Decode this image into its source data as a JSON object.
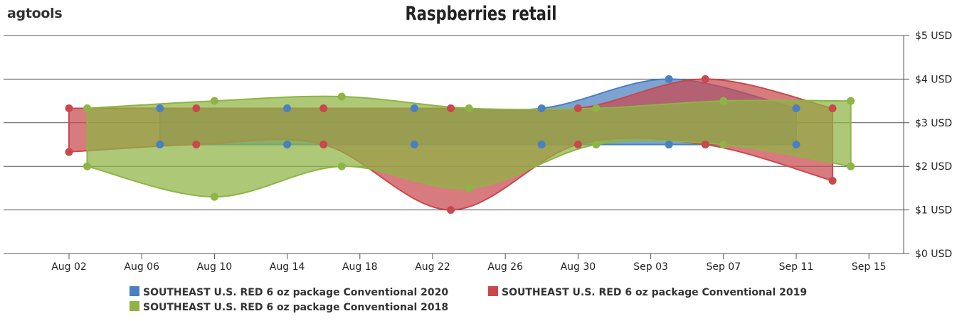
{
  "brand": {
    "logo_text": "agtools"
  },
  "chart_data": {
    "type": "area",
    "title": "Raspberries retail",
    "xlabel": "",
    "ylabel": "",
    "y_axis_position": "right",
    "ylim": [
      0,
      5
    ],
    "yticks": [
      "$0 USD",
      "$1 USD",
      "$2 USD",
      "$3 USD",
      "$4 USD",
      "$5 USD"
    ],
    "xticks": [
      "Aug 02",
      "Aug 06",
      "Aug 10",
      "Aug 14",
      "Aug 18",
      "Aug 22",
      "Aug 26",
      "Aug 30",
      "Sep 03",
      "Sep 07",
      "Sep 11",
      "Sep 15"
    ],
    "grid": "horizontal",
    "legend_position": "bottom-center",
    "series": [
      {
        "name": "SOUTHEAST U.S.  RED 6 oz package  Conventional 2020",
        "color": "#4a7fc1",
        "x": [
          "Aug 07",
          "Aug 14",
          "Aug 21",
          "Aug 28",
          "Sep 04",
          "Sep 11"
        ],
        "high": [
          3.33,
          3.33,
          3.33,
          3.33,
          4.0,
          3.33
        ],
        "low": [
          2.5,
          2.5,
          2.5,
          2.5,
          2.5,
          2.5
        ]
      },
      {
        "name": "SOUTHEAST U.S.  RED 6 oz package  Conventional 2019",
        "color": "#c9484d",
        "x": [
          "Aug 02",
          "Aug 09",
          "Aug 16",
          "Aug 23",
          "Aug 30",
          "Sep 06",
          "Sep 13"
        ],
        "high": [
          3.33,
          3.33,
          3.33,
          3.33,
          3.33,
          4.0,
          3.33
        ],
        "low": [
          2.33,
          2.5,
          2.5,
          1.0,
          2.5,
          2.5,
          1.67
        ]
      },
      {
        "name": "SOUTHEAST U.S.  RED 6 oz package  Conventional 2018",
        "color": "#8db444",
        "x": [
          "Aug 03",
          "Aug 10",
          "Aug 17",
          "Aug 24",
          "Aug 31",
          "Sep 07",
          "Sep 14"
        ],
        "high": [
          3.33,
          3.5,
          3.6,
          3.33,
          3.33,
          3.5,
          3.5
        ],
        "low": [
          2.0,
          1.3,
          2.0,
          1.5,
          2.5,
          2.5,
          2.0
        ]
      }
    ]
  }
}
